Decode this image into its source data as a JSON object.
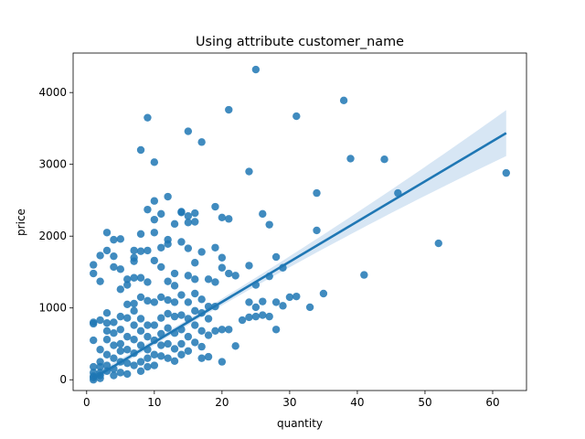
{
  "chart_data": {
    "type": "scatter",
    "title": "Using attribute customer_name",
    "xlabel": "quantity",
    "ylabel": "price",
    "xlim": [
      -2,
      65
    ],
    "ylim": [
      -150,
      4550
    ],
    "xticks": [
      0,
      10,
      20,
      30,
      40,
      50,
      60
    ],
    "yticks": [
      0,
      1000,
      2000,
      3000,
      4000
    ],
    "grid": false,
    "colors": {
      "points": "#1f77b4",
      "line": "#1f77b4",
      "band": "#c6dbef"
    },
    "regression": {
      "x": [
        1,
        62
      ],
      "y": [
        20,
        3435
      ],
      "ci_lower": [
        -40,
        3120
      ],
      "ci_upper": [
        60,
        3760
      ]
    },
    "series": [
      {
        "points": [
          [
            1,
            50
          ],
          [
            1,
            100
          ],
          [
            1,
            30
          ],
          [
            1,
            0
          ],
          [
            1,
            1600
          ],
          [
            1,
            1480
          ],
          [
            1,
            800
          ],
          [
            1,
            780
          ],
          [
            1,
            550
          ],
          [
            1,
            180
          ],
          [
            2,
            1370
          ],
          [
            2,
            1730
          ],
          [
            2,
            830
          ],
          [
            2,
            100
          ],
          [
            2,
            60
          ],
          [
            2,
            20
          ],
          [
            2,
            180
          ],
          [
            2,
            250
          ],
          [
            2,
            420
          ],
          [
            3,
            2050
          ],
          [
            3,
            1800
          ],
          [
            3,
            930
          ],
          [
            3,
            790
          ],
          [
            3,
            680
          ],
          [
            3,
            560
          ],
          [
            3,
            350
          ],
          [
            3,
            200
          ],
          [
            3,
            120
          ],
          [
            4,
            1950
          ],
          [
            4,
            1720
          ],
          [
            4,
            1570
          ],
          [
            4,
            800
          ],
          [
            4,
            650
          ],
          [
            4,
            480
          ],
          [
            4,
            300
          ],
          [
            4,
            150
          ],
          [
            4,
            60
          ],
          [
            5,
            1960
          ],
          [
            5,
            1540
          ],
          [
            5,
            1260
          ],
          [
            5,
            880
          ],
          [
            5,
            700
          ],
          [
            5,
            500
          ],
          [
            5,
            400
          ],
          [
            5,
            250
          ],
          [
            5,
            100
          ],
          [
            6,
            1400
          ],
          [
            6,
            1320
          ],
          [
            6,
            1050
          ],
          [
            6,
            860
          ],
          [
            6,
            600
          ],
          [
            6,
            420
          ],
          [
            6,
            230
          ],
          [
            6,
            80
          ],
          [
            7,
            1800
          ],
          [
            7,
            1700
          ],
          [
            7,
            1650
          ],
          [
            7,
            1420
          ],
          [
            7,
            1060
          ],
          [
            7,
            960
          ],
          [
            7,
            760
          ],
          [
            7,
            560
          ],
          [
            7,
            370
          ],
          [
            7,
            200
          ],
          [
            8,
            3200
          ],
          [
            8,
            2030
          ],
          [
            8,
            1790
          ],
          [
            8,
            1420
          ],
          [
            8,
            1150
          ],
          [
            8,
            850
          ],
          [
            8,
            680
          ],
          [
            8,
            480
          ],
          [
            8,
            250
          ],
          [
            8,
            120
          ],
          [
            9,
            3650
          ],
          [
            9,
            2370
          ],
          [
            9,
            1800
          ],
          [
            9,
            1360
          ],
          [
            9,
            1100
          ],
          [
            9,
            760
          ],
          [
            9,
            600
          ],
          [
            9,
            420
          ],
          [
            9,
            300
          ],
          [
            9,
            180
          ],
          [
            10,
            3030
          ],
          [
            10,
            2490
          ],
          [
            10,
            2230
          ],
          [
            10,
            2050
          ],
          [
            10,
            1660
          ],
          [
            10,
            1080
          ],
          [
            10,
            760
          ],
          [
            10,
            550
          ],
          [
            10,
            350
          ],
          [
            10,
            200
          ],
          [
            11,
            2310
          ],
          [
            11,
            1840
          ],
          [
            11,
            1570
          ],
          [
            11,
            1150
          ],
          [
            11,
            860
          ],
          [
            11,
            640
          ],
          [
            11,
            480
          ],
          [
            11,
            330
          ],
          [
            12,
            2550
          ],
          [
            12,
            1950
          ],
          [
            12,
            1890
          ],
          [
            12,
            1370
          ],
          [
            12,
            1110
          ],
          [
            12,
            920
          ],
          [
            12,
            720
          ],
          [
            12,
            500
          ],
          [
            12,
            300
          ],
          [
            13,
            2170
          ],
          [
            13,
            1480
          ],
          [
            13,
            1310
          ],
          [
            13,
            1080
          ],
          [
            13,
            880
          ],
          [
            13,
            650
          ],
          [
            13,
            430
          ],
          [
            13,
            260
          ],
          [
            14,
            2340
          ],
          [
            14,
            2330
          ],
          [
            14,
            1920
          ],
          [
            14,
            1180
          ],
          [
            14,
            900
          ],
          [
            14,
            700
          ],
          [
            14,
            500
          ],
          [
            14,
            350
          ],
          [
            15,
            3460
          ],
          [
            15,
            2280
          ],
          [
            15,
            2190
          ],
          [
            15,
            1830
          ],
          [
            15,
            1450
          ],
          [
            15,
            1080
          ],
          [
            15,
            850
          ],
          [
            15,
            600
          ],
          [
            15,
            400
          ],
          [
            16,
            2320
          ],
          [
            16,
            2200
          ],
          [
            16,
            1630
          ],
          [
            16,
            1400
          ],
          [
            16,
            1200
          ],
          [
            16,
            960
          ],
          [
            16,
            760
          ],
          [
            16,
            520
          ],
          [
            17,
            3310
          ],
          [
            17,
            1780
          ],
          [
            17,
            1120
          ],
          [
            17,
            930
          ],
          [
            17,
            680
          ],
          [
            17,
            460
          ],
          [
            17,
            300
          ],
          [
            18,
            1400
          ],
          [
            18,
            1020
          ],
          [
            18,
            850
          ],
          [
            18,
            620
          ],
          [
            18,
            320
          ],
          [
            19,
            2410
          ],
          [
            19,
            1840
          ],
          [
            19,
            1360
          ],
          [
            19,
            1020
          ],
          [
            19,
            680
          ],
          [
            20,
            2260
          ],
          [
            20,
            1700
          ],
          [
            20,
            1560
          ],
          [
            20,
            700
          ],
          [
            20,
            250
          ],
          [
            21,
            3760
          ],
          [
            21,
            2240
          ],
          [
            21,
            1480
          ],
          [
            21,
            700
          ],
          [
            22,
            1450
          ],
          [
            22,
            470
          ],
          [
            23,
            830
          ],
          [
            24,
            2900
          ],
          [
            24,
            1590
          ],
          [
            24,
            1080
          ],
          [
            24,
            870
          ],
          [
            25,
            4320
          ],
          [
            25,
            1320
          ],
          [
            25,
            1010
          ],
          [
            25,
            880
          ],
          [
            26,
            2310
          ],
          [
            26,
            1090
          ],
          [
            26,
            900
          ],
          [
            27,
            2160
          ],
          [
            27,
            1440
          ],
          [
            27,
            880
          ],
          [
            28,
            1710
          ],
          [
            28,
            1080
          ],
          [
            28,
            700
          ],
          [
            29,
            1560
          ],
          [
            29,
            1030
          ],
          [
            30,
            1150
          ],
          [
            31,
            3670
          ],
          [
            31,
            1160
          ],
          [
            33,
            1010
          ],
          [
            34,
            2600
          ],
          [
            34,
            2080
          ],
          [
            35,
            1200
          ],
          [
            38,
            3890
          ],
          [
            39,
            3080
          ],
          [
            41,
            1460
          ],
          [
            44,
            3070
          ],
          [
            46,
            2600
          ],
          [
            52,
            1900
          ],
          [
            62,
            2880
          ]
        ]
      }
    ]
  }
}
